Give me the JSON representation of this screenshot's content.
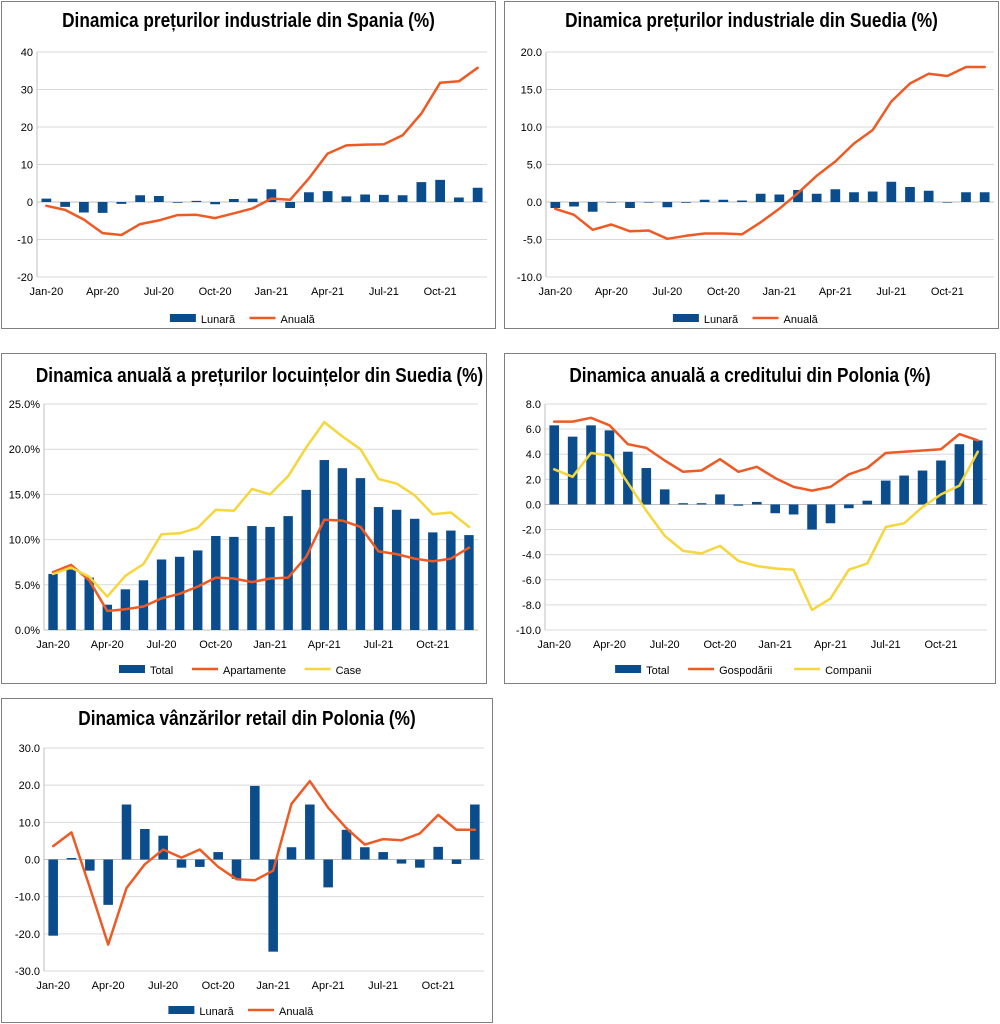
{
  "colors": {
    "bar": "#0b4d8c",
    "line_orange": "#ee5a24",
    "line_yellow": "#f5d63d",
    "grid": "#d9d9d9"
  },
  "chart_data": [
    {
      "id": "spain",
      "type": "bar+line",
      "title": "Dinamica prețurilor industriale din Spania (%)",
      "categories": [
        "Jan-20",
        "Feb-20",
        "Mar-20",
        "Apr-20",
        "May-20",
        "Jun-20",
        "Jul-20",
        "Aug-20",
        "Sep-20",
        "Oct-20",
        "Nov-20",
        "Dec-20",
        "Jan-21",
        "Feb-21",
        "Mar-21",
        "Apr-21",
        "May-21",
        "Jun-21",
        "Jul-21",
        "Aug-21",
        "Sep-21",
        "Oct-21",
        "Nov-21",
        "Dec-21"
      ],
      "xtick_labels": [
        "Jan-20",
        "Apr-20",
        "Jul-20",
        "Oct-20",
        "Jan-21",
        "Apr-21",
        "Jul-21",
        "Oct-21"
      ],
      "ylim": [
        -20,
        40
      ],
      "yticks": [
        -20,
        -10,
        0,
        10,
        20,
        30,
        40
      ],
      "ytick_labels": [
        "-20",
        "-10",
        "0",
        "10",
        "20",
        "30",
        "40"
      ],
      "series": [
        {
          "name": "Lunară",
          "kind": "bar",
          "color": "#0b4d8c",
          "values": [
            0.9,
            -1.3,
            -2.8,
            -2.9,
            -0.5,
            1.8,
            1.6,
            -0.2,
            0.3,
            -0.6,
            0.8,
            0.9,
            3.4,
            -1.6,
            2.6,
            2.9,
            1.5,
            2.0,
            1.9,
            1.8,
            5.3,
            5.9,
            1.2,
            3.8
          ]
        },
        {
          "name": "Anuală",
          "kind": "line",
          "color": "#ee5a24",
          "values": [
            -1.0,
            -2.1,
            -4.7,
            -8.3,
            -8.8,
            -5.9,
            -4.9,
            -3.5,
            -3.4,
            -4.3,
            -3.0,
            -1.7,
            0.9,
            0.6,
            6.3,
            12.9,
            15.1,
            15.3,
            15.4,
            17.8,
            23.6,
            31.8,
            32.2,
            35.8
          ]
        }
      ],
      "legend": [
        "Lunară",
        "Anuală"
      ]
    },
    {
      "id": "sweden-ind",
      "type": "bar+line",
      "title": "Dinamica prețurilor industriale din Suedia (%)",
      "categories": [
        "Jan-20",
        "Feb-20",
        "Mar-20",
        "Apr-20",
        "May-20",
        "Jun-20",
        "Jul-20",
        "Aug-20",
        "Sep-20",
        "Oct-20",
        "Nov-20",
        "Dec-20",
        "Jan-21",
        "Feb-21",
        "Mar-21",
        "Apr-21",
        "May-21",
        "Jun-21",
        "Jul-21",
        "Aug-21",
        "Sep-21",
        "Oct-21",
        "Nov-21",
        "Dec-21"
      ],
      "xtick_labels": [
        "Jan-20",
        "Apr-20",
        "Jul-20",
        "Oct-20",
        "Jan-21",
        "Apr-21",
        "Jul-21",
        "Oct-21"
      ],
      "ylim": [
        -10,
        20
      ],
      "yticks": [
        -10,
        -5,
        0,
        5,
        10,
        15,
        20
      ],
      "ytick_labels": [
        "-10.0",
        "-5.0",
        "0.0",
        "5.0",
        "10.0",
        "15.0",
        "20.0"
      ],
      "series": [
        {
          "name": "Lunară",
          "kind": "bar",
          "color": "#0b4d8c",
          "values": [
            -0.8,
            -0.6,
            -1.3,
            0.0,
            -0.8,
            0.0,
            -0.7,
            -0.1,
            0.3,
            0.3,
            0.2,
            1.1,
            1.0,
            1.6,
            1.1,
            1.7,
            1.3,
            1.4,
            2.7,
            2.0,
            1.5,
            0.0,
            1.3,
            1.3
          ]
        },
        {
          "name": "Anuală",
          "kind": "line",
          "color": "#ee5a24",
          "values": [
            -0.9,
            -1.7,
            -3.7,
            -3.0,
            -3.9,
            -3.8,
            -4.9,
            -4.5,
            -4.2,
            -4.2,
            -4.3,
            -2.7,
            -0.9,
            1.2,
            3.5,
            5.4,
            7.8,
            9.6,
            13.4,
            15.8,
            17.1,
            16.8,
            18.0,
            18.0
          ]
        }
      ],
      "legend": [
        "Lunară",
        "Anuală"
      ]
    },
    {
      "id": "sweden-housing",
      "type": "bar+line",
      "title": "Dinamica anuală a prețurilor locuințelor din Suedia (%)",
      "categories": [
        "Jan-20",
        "Feb-20",
        "Mar-20",
        "Apr-20",
        "May-20",
        "Jun-20",
        "Jul-20",
        "Aug-20",
        "Sep-20",
        "Oct-20",
        "Nov-20",
        "Dec-20",
        "Jan-21",
        "Feb-21",
        "Mar-21",
        "Apr-21",
        "May-21",
        "Jun-21",
        "Jul-21",
        "Aug-21",
        "Sep-21",
        "Oct-21",
        "Nov-21",
        "Dec-21"
      ],
      "xtick_labels": [
        "Jan-20",
        "Apr-20",
        "Jul-20",
        "Oct-20",
        "Jan-21",
        "Apr-21",
        "Jul-21",
        "Oct-21"
      ],
      "ylim": [
        0,
        25
      ],
      "yticks": [
        0,
        5,
        10,
        15,
        20,
        25
      ],
      "ytick_labels": [
        "0.0%",
        "5.0%",
        "10.0%",
        "15.0%",
        "20.0%",
        "25.0%"
      ],
      "series": [
        {
          "name": "Total",
          "kind": "bar",
          "color": "#0b4d8c",
          "values": [
            6.2,
            6.7,
            5.8,
            2.8,
            4.5,
            5.5,
            7.8,
            8.1,
            8.8,
            10.4,
            10.3,
            11.5,
            11.4,
            12.6,
            15.5,
            18.8,
            17.9,
            16.8,
            13.6,
            13.3,
            12.3,
            10.8,
            11.0,
            10.5
          ]
        },
        {
          "name": "Apartamente",
          "kind": "line",
          "color": "#ee5a24",
          "values": [
            6.4,
            7.2,
            5.5,
            2.1,
            2.3,
            2.6,
            3.5,
            4.0,
            4.8,
            5.8,
            5.7,
            5.3,
            5.7,
            5.8,
            8.1,
            12.2,
            12.1,
            11.4,
            8.7,
            8.4,
            7.9,
            7.6,
            7.9,
            9.1
          ]
        },
        {
          "name": "Case",
          "kind": "line",
          "color": "#f5d63d",
          "values": [
            6.2,
            6.9,
            5.9,
            3.7,
            6.0,
            7.3,
            10.6,
            10.7,
            11.3,
            13.3,
            13.2,
            15.6,
            15.0,
            17.0,
            20.2,
            23.0,
            21.4,
            20.0,
            16.7,
            16.2,
            14.9,
            12.8,
            13.0,
            11.4
          ]
        }
      ],
      "legend": [
        "Total",
        "Apartamente",
        "Case"
      ]
    },
    {
      "id": "poland-credit",
      "type": "bar+line",
      "title": "Dinamica anuală a creditului din Polonia (%)",
      "categories": [
        "Jan-20",
        "Feb-20",
        "Mar-20",
        "Apr-20",
        "May-20",
        "Jun-20",
        "Jul-20",
        "Aug-20",
        "Sep-20",
        "Oct-20",
        "Nov-20",
        "Dec-20",
        "Jan-21",
        "Feb-21",
        "Mar-21",
        "Apr-21",
        "May-21",
        "Jun-21",
        "Jul-21",
        "Aug-21",
        "Sep-21",
        "Oct-21",
        "Nov-21",
        "Dec-21"
      ],
      "xtick_labels": [
        "Jan-20",
        "Apr-20",
        "Jul-20",
        "Oct-20",
        "Jan-21",
        "Apr-21",
        "Jul-21",
        "Oct-21"
      ],
      "ylim": [
        -10,
        8
      ],
      "yticks": [
        -10,
        -8,
        -6,
        -4,
        -2,
        0,
        2,
        4,
        6,
        8
      ],
      "ytick_labels": [
        "-10.0",
        "-8.0",
        "-6.0",
        "-4.0",
        "-2.0",
        "0.0",
        "2.0",
        "4.0",
        "6.0",
        "8.0"
      ],
      "series": [
        {
          "name": "Total",
          "kind": "bar",
          "color": "#0b4d8c",
          "values": [
            6.3,
            5.4,
            6.3,
            5.9,
            4.2,
            2.9,
            1.2,
            0.1,
            0.1,
            0.8,
            -0.1,
            0.2,
            -0.7,
            -0.8,
            -2.0,
            -1.5,
            -0.3,
            0.3,
            1.9,
            2.3,
            2.7,
            3.5,
            4.8,
            5.1
          ]
        },
        {
          "name": "Gospodării",
          "kind": "line",
          "color": "#ee5a24",
          "values": [
            6.6,
            6.6,
            6.9,
            6.3,
            4.8,
            4.5,
            3.5,
            2.6,
            2.7,
            3.6,
            2.6,
            3.0,
            2.1,
            1.4,
            1.1,
            1.4,
            2.4,
            2.9,
            4.1,
            4.2,
            4.3,
            4.4,
            5.6,
            5.1
          ]
        },
        {
          "name": "Companii",
          "kind": "line",
          "color": "#f5d63d",
          "values": [
            2.8,
            2.2,
            4.1,
            3.9,
            1.7,
            -0.5,
            -2.5,
            -3.7,
            -3.9,
            -3.3,
            -4.5,
            -4.9,
            -5.1,
            -5.2,
            -8.4,
            -7.5,
            -5.2,
            -4.7,
            -1.8,
            -1.5,
            -0.2,
            0.8,
            1.5,
            4.2
          ]
        }
      ],
      "legend": [
        "Total",
        "Gospodării",
        "Companii"
      ]
    },
    {
      "id": "poland-retail",
      "type": "bar+line",
      "title": "Dinamica vânzărilor retail din Polonia (%)",
      "categories": [
        "Jan-20",
        "Feb-20",
        "Mar-20",
        "Apr-20",
        "May-20",
        "Jun-20",
        "Jul-20",
        "Aug-20",
        "Sep-20",
        "Oct-20",
        "Nov-20",
        "Dec-20",
        "Jan-21",
        "Feb-21",
        "Mar-21",
        "Apr-21",
        "May-21",
        "Jun-21",
        "Jul-21",
        "Aug-21",
        "Sep-21",
        "Oct-21",
        "Nov-21",
        "Dec-21"
      ],
      "xtick_labels": [
        "Jan-20",
        "Apr-20",
        "Jul-20",
        "Oct-20",
        "Jan-21",
        "Apr-21",
        "Jul-21",
        "Oct-21"
      ],
      "ylim": [
        -30,
        30
      ],
      "yticks": [
        -30,
        -20,
        -10,
        0,
        10,
        20,
        30
      ],
      "ytick_labels": [
        "-30.0",
        "-20.0",
        "-10.0",
        "0.0",
        "10.0",
        "20.0",
        "30.0"
      ],
      "series": [
        {
          "name": "Lunară",
          "kind": "bar",
          "color": "#0b4d8c",
          "values": [
            -20.5,
            0.4,
            -3.0,
            -12.2,
            14.8,
            8.2,
            6.4,
            -2.2,
            -2.0,
            2.0,
            -5.2,
            19.8,
            -24.8,
            3.3,
            14.8,
            -7.5,
            8.0,
            3.3,
            2.0,
            -1.1,
            -2.2,
            3.4,
            -1.2,
            14.8
          ]
        },
        {
          "name": "Anuală",
          "kind": "line",
          "color": "#ee5a24",
          "values": [
            3.6,
            7.3,
            -7.5,
            -22.9,
            -7.7,
            -1.3,
            2.7,
            0.5,
            2.7,
            -2.0,
            -5.3,
            -5.6,
            -3.0,
            15.0,
            21.1,
            13.9,
            8.4,
            4.0,
            5.5,
            5.2,
            7.0,
            12.0,
            8.0,
            8.0
          ]
        }
      ],
      "legend": [
        "Lunară",
        "Anuală"
      ]
    }
  ]
}
